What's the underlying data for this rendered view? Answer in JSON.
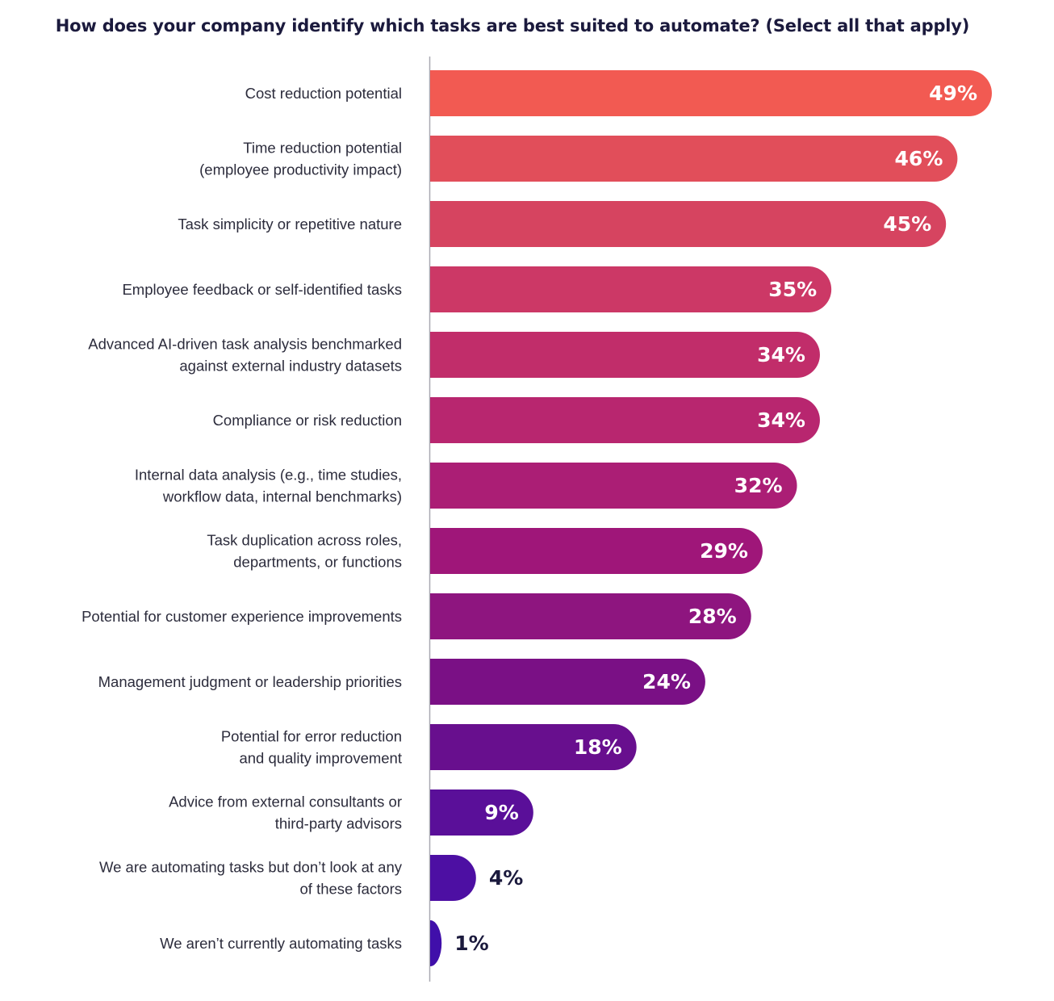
{
  "chart_data": {
    "type": "bar",
    "orientation": "horizontal",
    "title": "How does your company identify which tasks are best suited to automate? (Select all that apply)",
    "categories": [
      [
        "Cost reduction potential"
      ],
      [
        "Time reduction potential",
        "(employee productivity impact)"
      ],
      [
        "Task simplicity or repetitive nature"
      ],
      [
        "Employee feedback or self-identified tasks"
      ],
      [
        "Advanced AI-driven task analysis benchmarked",
        "against external industry datasets"
      ],
      [
        "Compliance or risk reduction"
      ],
      [
        "Internal data analysis (e.g., time studies,",
        "workflow data, internal benchmarks)"
      ],
      [
        "Task duplication across roles,",
        "departments, or functions"
      ],
      [
        "Potential for customer experience improvements"
      ],
      [
        "Management judgment or leadership priorities"
      ],
      [
        "Potential for error reduction",
        "and quality improvement"
      ],
      [
        "Advice from external consultants or",
        "third-party advisors"
      ],
      [
        "We are automating tasks but don’t look at any",
        "of these factors"
      ],
      [
        "We aren’t currently automating tasks"
      ]
    ],
    "values": [
      49,
      46,
      45,
      35,
      34,
      34,
      32,
      29,
      28,
      24,
      18,
      9,
      4,
      1
    ],
    "value_labels": [
      "49%",
      "46%",
      "45%",
      "35%",
      "34%",
      "34%",
      "32%",
      "29%",
      "28%",
      "24%",
      "18%",
      "9%",
      "4%",
      "1%"
    ],
    "xlim": [
      0,
      49
    ],
    "grid": false,
    "legend": "none",
    "colors": [
      "#f25a52",
      "#e14e5a",
      "#d64460",
      "#cc3866",
      "#c12d6a",
      "#b8266f",
      "#ab1e75",
      "#9f1679",
      "#8e157f",
      "#7a1085",
      "#680f8e",
      "#5a0f99",
      "#4d0fa3",
      "#400faa"
    ],
    "value_label_colors": {
      "inside": "#ffffff",
      "outside": "#1b1a3d"
    }
  }
}
